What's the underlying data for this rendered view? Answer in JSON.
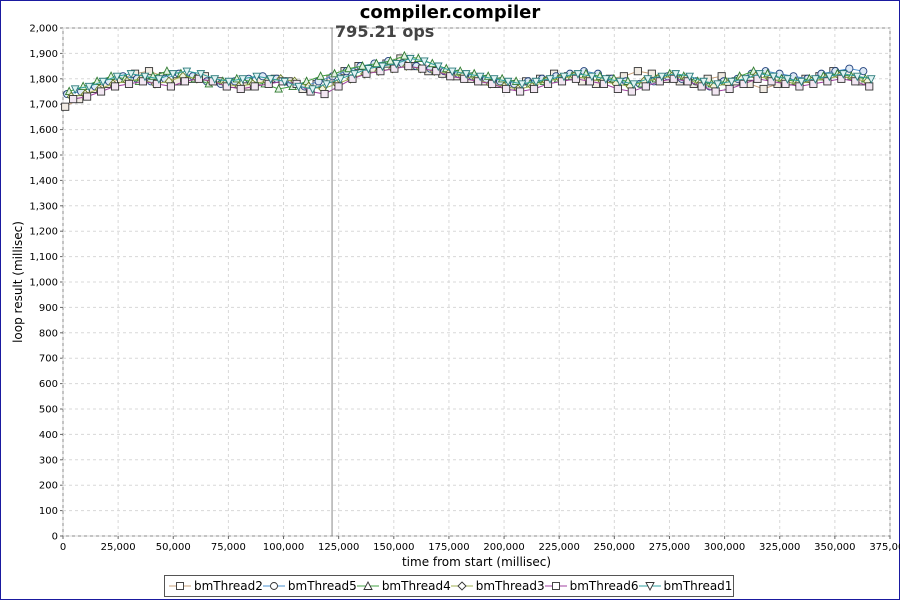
{
  "chart_data": {
    "type": "line",
    "title": "compiler.compiler",
    "xlabel": "time from start (millisec)",
    "ylabel": "loop result (millisec)",
    "xlim": [
      0,
      375000
    ],
    "ylim": [
      0,
      2000
    ],
    "x_ticks": [
      "0",
      "25,000",
      "50,000",
      "75,000",
      "100,000",
      "125,000",
      "150,000",
      "175,000",
      "200,000",
      "225,000",
      "250,000",
      "275,000",
      "300,000",
      "325,000",
      "350,000",
      "375,000"
    ],
    "y_ticks": [
      "0",
      "100",
      "200",
      "300",
      "400",
      "500",
      "600",
      "700",
      "800",
      "900",
      "1,000",
      "1,100",
      "1,200",
      "1,300",
      "1,400",
      "1,500",
      "1,600",
      "1,700",
      "1,800",
      "1,900",
      "2,000"
    ],
    "grid": true,
    "legend_position": "bottom",
    "annotation": {
      "x": 122000,
      "label": "795.21 ops"
    },
    "series": [
      {
        "name": "bmThread2",
        "marker": "square",
        "color": "#c8a078",
        "values": [
          1690,
          1720,
          1760,
          1780,
          1800,
          1820,
          1830,
          1810,
          1790,
          1800,
          1810,
          1790,
          1780,
          1770,
          1790,
          1800,
          1790,
          1760,
          1780,
          1800,
          1830,
          1850,
          1840,
          1860,
          1880,
          1850,
          1830,
          1820,
          1810,
          1800,
          1790,
          1780,
          1770,
          1790,
          1800,
          1820,
          1810,
          1790,
          1780,
          1800,
          1810,
          1830,
          1820,
          1800,
          1790,
          1780,
          1800,
          1810,
          1790,
          1780,
          1760,
          1780,
          1790,
          1800,
          1810,
          1830,
          1820,
          1790
        ]
      },
      {
        "name": "bmThread5",
        "marker": "circle",
        "color": "#4a90d0",
        "values": [
          1740,
          1750,
          1770,
          1790,
          1810,
          1800,
          1790,
          1800,
          1820,
          1810,
          1790,
          1780,
          1790,
          1800,
          1810,
          1800,
          1780,
          1770,
          1790,
          1810,
          1830,
          1850,
          1860,
          1870,
          1860,
          1850,
          1840,
          1830,
          1820,
          1810,
          1800,
          1790,
          1780,
          1790,
          1800,
          1810,
          1820,
          1830,
          1820,
          1800,
          1790,
          1780,
          1790,
          1810,
          1800,
          1790,
          1770,
          1790,
          1800,
          1820,
          1830,
          1820,
          1810,
          1800,
          1820,
          1830,
          1840,
          1830
        ]
      },
      {
        "name": "bmThread4",
        "marker": "triangle-up",
        "color": "#40a040",
        "values": [
          1750,
          1770,
          1790,
          1810,
          1800,
          1790,
          1810,
          1830,
          1820,
          1800,
          1780,
          1790,
          1800,
          1790,
          1780,
          1760,
          1770,
          1790,
          1810,
          1820,
          1840,
          1850,
          1860,
          1870,
          1890,
          1880,
          1860,
          1840,
          1830,
          1820,
          1810,
          1800,
          1790,
          1780,
          1790,
          1800,
          1810,
          1820,
          1810,
          1800,
          1790,
          1780,
          1800,
          1820,
          1810,
          1790,
          1780,
          1790,
          1810,
          1830,
          1820,
          1800,
          1790,
          1800,
          1810,
          1820,
          1810,
          1800
        ]
      },
      {
        "name": "bmThread3",
        "marker": "diamond",
        "color": "#a0b050",
        "values": [
          1730,
          1740,
          1760,
          1780,
          1790,
          1800,
          1780,
          1790,
          1810,
          1800,
          1790,
          1780,
          1770,
          1780,
          1790,
          1800,
          1790,
          1770,
          1760,
          1780,
          1800,
          1820,
          1830,
          1840,
          1850,
          1840,
          1830,
          1820,
          1810,
          1800,
          1780,
          1770,
          1760,
          1770,
          1790,
          1800,
          1810,
          1800,
          1790,
          1780,
          1770,
          1790,
          1800,
          1810,
          1800,
          1780,
          1770,
          1780,
          1800,
          1810,
          1800,
          1790,
          1780,
          1790,
          1800,
          1810,
          1800,
          1790
        ]
      },
      {
        "name": "bmThread6",
        "marker": "square",
        "color": "#a040a0",
        "values": [
          1720,
          1730,
          1750,
          1770,
          1780,
          1790,
          1780,
          1770,
          1790,
          1800,
          1790,
          1770,
          1760,
          1770,
          1780,
          1790,
          1780,
          1750,
          1740,
          1770,
          1800,
          1820,
          1830,
          1840,
          1850,
          1840,
          1830,
          1810,
          1800,
          1790,
          1780,
          1760,
          1750,
          1760,
          1780,
          1790,
          1800,
          1790,
          1780,
          1760,
          1750,
          1770,
          1790,
          1800,
          1790,
          1770,
          1750,
          1760,
          1780,
          1800,
          1790,
          1780,
          1770,
          1780,
          1790,
          1800,
          1790,
          1770
        ]
      },
      {
        "name": "bmThread1",
        "marker": "triangle-down",
        "color": "#30a0a0",
        "values": [
          1760,
          1770,
          1790,
          1810,
          1820,
          1810,
          1800,
          1820,
          1830,
          1820,
          1800,
          1790,
          1800,
          1810,
          1800,
          1790,
          1770,
          1760,
          1780,
          1800,
          1820,
          1840,
          1850,
          1860,
          1880,
          1870,
          1850,
          1830,
          1820,
          1810,
          1800,
          1790,
          1780,
          1790,
          1800,
          1810,
          1820,
          1810,
          1800,
          1790,
          1780,
          1800,
          1810,
          1820,
          1810,
          1790,
          1780,
          1790,
          1800,
          1820,
          1810,
          1800,
          1790,
          1800,
          1810,
          1820,
          1810,
          1800
        ]
      }
    ],
    "x_start": 1000,
    "x_end": 362000
  }
}
